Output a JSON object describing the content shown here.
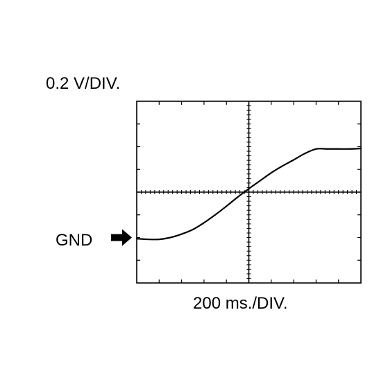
{
  "chart_data": {
    "type": "line",
    "title": "",
    "y_scale_label": "0.2 V/DIV.",
    "x_scale_label": "200 ms./DIV.",
    "ground_marker_label": "GND",
    "x_unit": "div",
    "y_unit": "div",
    "xlim": [
      0,
      10
    ],
    "ylim": [
      0,
      8
    ],
    "grid": false,
    "center_crosshair": true,
    "minor_ticks_per_div": 5,
    "ground_level_div": 2,
    "trace_color": "#000000",
    "series": [
      {
        "x": [
          0,
          0.5,
          1.0,
          1.5,
          2.0,
          2.5,
          3.0,
          3.5,
          4.0,
          4.5,
          5.0,
          5.5,
          6.0,
          6.5,
          7.0,
          7.5,
          8.0,
          8.5,
          9.0,
          9.5,
          10.0
        ],
        "y": [
          1.95,
          1.92,
          1.92,
          2.0,
          2.15,
          2.35,
          2.65,
          3.0,
          3.38,
          3.78,
          4.15,
          4.5,
          4.85,
          5.15,
          5.42,
          5.7,
          5.9,
          5.9,
          5.9,
          5.9,
          5.92
        ]
      }
    ]
  }
}
